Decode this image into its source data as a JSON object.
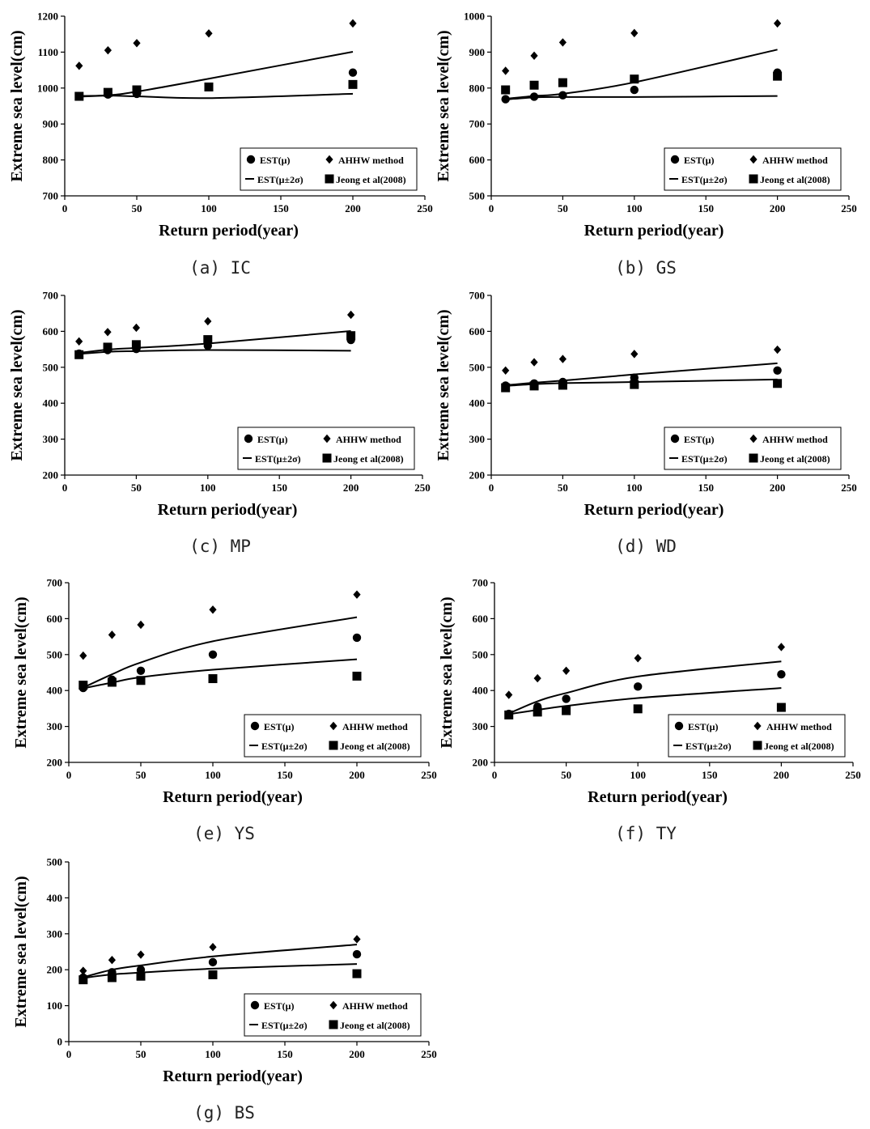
{
  "legend_labels": {
    "mean": "EST(μ)",
    "ahhw": "AHHW method",
    "band": "EST(μ±2σ)",
    "jeong": "Jeong et al(2008)"
  },
  "chart_data": [
    {
      "type": "scatter",
      "caption": "(a) IC",
      "xlabel": "Return period(year)",
      "ylabel": "Extreme sea level(cm)",
      "xlim": [
        0,
        250
      ],
      "ylim": [
        700,
        1200
      ],
      "xticks": [
        0,
        50,
        100,
        150,
        200,
        250
      ],
      "yticks": [
        700,
        800,
        900,
        1000,
        1100,
        1200
      ],
      "x": [
        10,
        30,
        50,
        100,
        200
      ],
      "series": [
        {
          "name": "EST(μ)",
          "marker": "circle",
          "values": [
            977,
            982,
            984,
            1003,
            1043
          ]
        },
        {
          "name": "AHHW method",
          "marker": "diamond",
          "values": [
            1062,
            1105,
            1125,
            1152,
            1180
          ]
        },
        {
          "name": "EST(μ±2σ)",
          "marker": "line",
          "upper": [
            978,
            980,
            990,
            1026,
            1101
          ],
          "lower": [
            976,
            979,
            977,
            972,
            984
          ]
        },
        {
          "name": "Jeong et al(2008)",
          "marker": "square",
          "values": [
            977,
            988,
            995,
            1003,
            1010
          ]
        }
      ]
    },
    {
      "type": "scatter",
      "caption": "(b) GS",
      "xlabel": "Return period(year)",
      "ylabel": "Extreme sea level(cm)",
      "xlim": [
        0,
        250
      ],
      "ylim": [
        500,
        1000
      ],
      "xticks": [
        0,
        50,
        100,
        150,
        200,
        250
      ],
      "yticks": [
        500,
        600,
        700,
        800,
        900,
        1000
      ],
      "x": [
        10,
        30,
        50,
        100,
        200
      ],
      "series": [
        {
          "name": "EST(μ)",
          "marker": "circle",
          "values": [
            769,
            776,
            780,
            795,
            843
          ]
        },
        {
          "name": "AHHW method",
          "marker": "diamond",
          "values": [
            848,
            890,
            927,
            953,
            980
          ]
        },
        {
          "name": "EST(μ±2σ)",
          "marker": "line",
          "upper": [
            770,
            778,
            784,
            816,
            907
          ],
          "lower": [
            768,
            774,
            775,
            775,
            778
          ]
        },
        {
          "name": "Jeong et al(2008)",
          "marker": "square",
          "values": [
            795,
            808,
            815,
            825,
            833
          ]
        }
      ]
    },
    {
      "type": "scatter",
      "caption": "(c) MP",
      "xlabel": "Return period(year)",
      "ylabel": "Extreme sea level(cm)",
      "xlim": [
        0,
        250
      ],
      "ylim": [
        200,
        700
      ],
      "xticks": [
        0,
        50,
        100,
        150,
        200,
        250
      ],
      "yticks": [
        200,
        300,
        400,
        500,
        600,
        700
      ],
      "x": [
        10,
        30,
        50,
        100,
        200
      ],
      "series": [
        {
          "name": "EST(μ)",
          "marker": "circle",
          "values": [
            538,
            548,
            551,
            560,
            576
          ]
        },
        {
          "name": "AHHW method",
          "marker": "diamond",
          "values": [
            572,
            598,
            610,
            628,
            646
          ]
        },
        {
          "name": "EST(μ±2σ)",
          "marker": "line",
          "upper": [
            540,
            549,
            554,
            566,
            601
          ],
          "lower": [
            537,
            543,
            545,
            548,
            546
          ]
        },
        {
          "name": "Jeong et al(2008)",
          "marker": "square",
          "values": [
            535,
            556,
            563,
            577,
            588
          ]
        }
      ]
    },
    {
      "type": "scatter",
      "caption": "(d) WD",
      "xlabel": "Return period(year)",
      "ylabel": "Extreme sea level(cm)",
      "xlim": [
        0,
        250
      ],
      "ylim": [
        200,
        700
      ],
      "xticks": [
        0,
        50,
        100,
        150,
        200,
        250
      ],
      "yticks": [
        200,
        300,
        400,
        500,
        600,
        700
      ],
      "x": [
        10,
        30,
        50,
        100,
        200
      ],
      "series": [
        {
          "name": "EST(μ)",
          "marker": "circle",
          "values": [
            449,
            455,
            459,
            471,
            491
          ]
        },
        {
          "name": "AHHW method",
          "marker": "diamond",
          "values": [
            491,
            514,
            523,
            537,
            549
          ]
        },
        {
          "name": "EST(μ±2σ)",
          "marker": "line",
          "upper": [
            450,
            457,
            463,
            480,
            511
          ],
          "lower": [
            448,
            453,
            456,
            459,
            466
          ]
        },
        {
          "name": "Jeong et al(2008)",
          "marker": "square",
          "values": [
            443,
            448,
            450,
            452,
            455
          ]
        }
      ]
    },
    {
      "type": "scatter",
      "caption": "(e) YS",
      "xlabel": "Return period(year)",
      "ylabel": "Extreme sea level(cm)",
      "xlim": [
        0,
        250
      ],
      "ylim": [
        200,
        700
      ],
      "xticks": [
        0,
        50,
        100,
        150,
        200,
        250
      ],
      "yticks": [
        200,
        300,
        400,
        500,
        600,
        700
      ],
      "x": [
        10,
        30,
        50,
        100,
        200
      ],
      "series": [
        {
          "name": "EST(μ)",
          "marker": "circle",
          "values": [
            407,
            430,
            455,
            500,
            547
          ]
        },
        {
          "name": "AHHW method",
          "marker": "diamond",
          "values": [
            497,
            555,
            583,
            625,
            667
          ]
        },
        {
          "name": "EST(μ±2σ)",
          "marker": "line",
          "upper": [
            408,
            445,
            478,
            537,
            604
          ],
          "lower": [
            406,
            422,
            437,
            458,
            487
          ]
        },
        {
          "name": "Jeong et al(2008)",
          "marker": "square",
          "values": [
            415,
            423,
            428,
            433,
            440
          ]
        }
      ]
    },
    {
      "type": "scatter",
      "caption": "(f) TY",
      "xlabel": "Return period(year)",
      "ylabel": "Extreme sea level(cm)",
      "xlim": [
        0,
        250
      ],
      "ylim": [
        200,
        700
      ],
      "xticks": [
        0,
        50,
        100,
        150,
        200,
        250
      ],
      "yticks": [
        200,
        300,
        400,
        500,
        600,
        700
      ],
      "x": [
        10,
        30,
        50,
        100,
        200
      ],
      "series": [
        {
          "name": "EST(μ)",
          "marker": "circle",
          "values": [
            335,
            355,
            377,
            411,
            445
          ]
        },
        {
          "name": "AHHW method",
          "marker": "diamond",
          "values": [
            388,
            434,
            455,
            490,
            521
          ]
        },
        {
          "name": "EST(μ±2σ)",
          "marker": "line",
          "upper": [
            336,
            370,
            393,
            439,
            481
          ],
          "lower": [
            334,
            346,
            357,
            379,
            407
          ]
        },
        {
          "name": "Jeong et al(2008)",
          "marker": "square",
          "values": [
            332,
            340,
            344,
            349,
            353
          ]
        }
      ]
    },
    {
      "type": "scatter",
      "caption": "(g) BS",
      "xlabel": "Return period(year)",
      "ylabel": "Extreme sea level(cm)",
      "xlim": [
        0,
        250
      ],
      "ylim": [
        0,
        500
      ],
      "xticks": [
        0,
        50,
        100,
        150,
        200,
        250
      ],
      "yticks": [
        0,
        100,
        200,
        300,
        400,
        500
      ],
      "x": [
        10,
        30,
        50,
        100,
        200
      ],
      "series": [
        {
          "name": "EST(μ)",
          "marker": "circle",
          "values": [
            178,
            193,
            200,
            221,
            243
          ]
        },
        {
          "name": "AHHW method",
          "marker": "diamond",
          "values": [
            197,
            227,
            242,
            263,
            285
          ]
        },
        {
          "name": "EST(μ±2σ)",
          "marker": "line",
          "upper": [
            179,
            200,
            212,
            237,
            270
          ],
          "lower": [
            177,
            187,
            192,
            203,
            216
          ]
        },
        {
          "name": "Jeong et al(2008)",
          "marker": "square",
          "values": [
            172,
            178,
            182,
            186,
            189
          ]
        }
      ]
    }
  ]
}
